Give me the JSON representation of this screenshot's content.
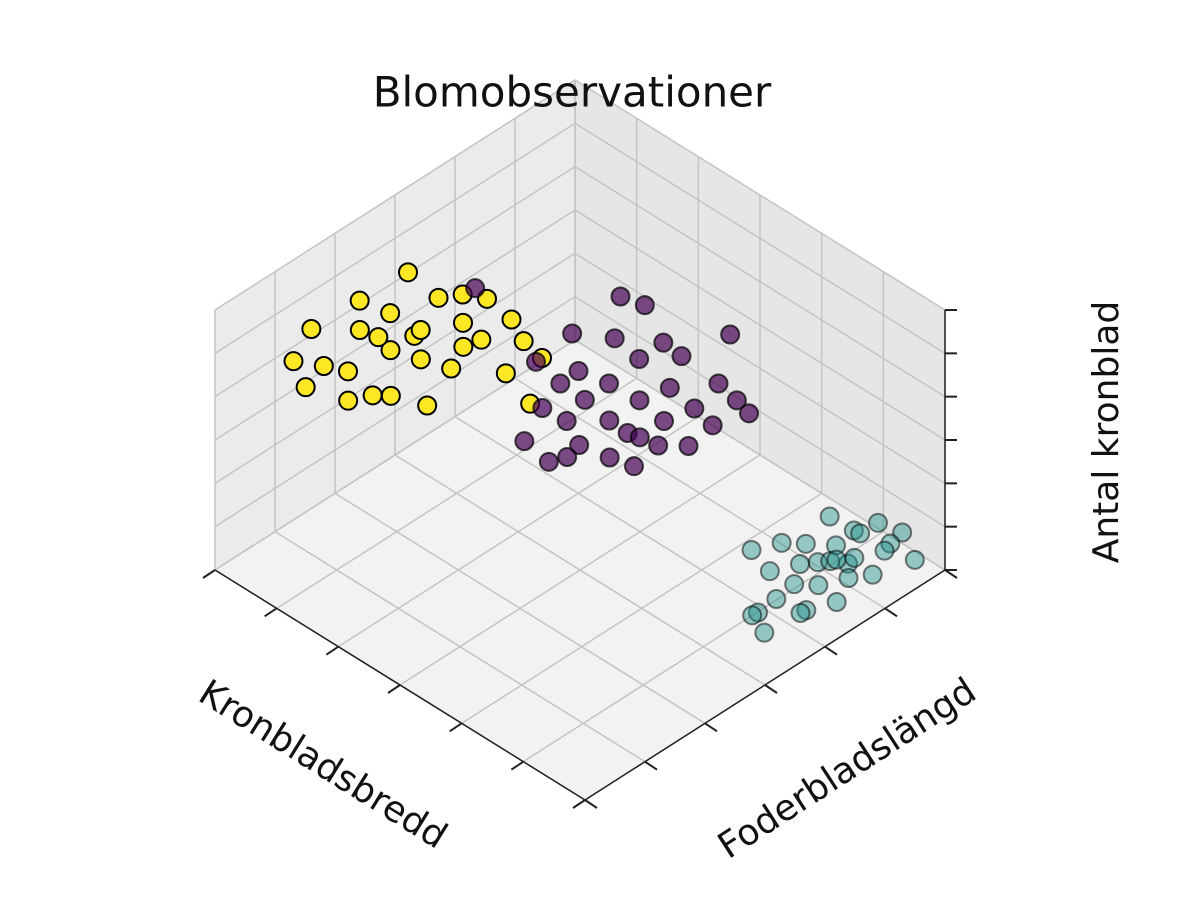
{
  "chart_data": {
    "type": "scatter3d",
    "title": "Blomobservationer",
    "x_label": "Kronbladsbredd",
    "y_label": "Foderbladslängd",
    "z_label": "Antal kronblad",
    "xlim": [
      0,
      6
    ],
    "ylim": [
      0,
      6
    ],
    "zlim": [
      0,
      6
    ],
    "xticks": [
      0,
      1,
      2,
      3,
      4,
      5,
      6
    ],
    "yticks": [
      0,
      1,
      2,
      3,
      4,
      5,
      6
    ],
    "zticks": [
      0,
      1,
      2,
      3,
      4,
      5,
      6
    ],
    "grid": true,
    "series": [
      {
        "color": "#fde725",
        "alpha": 1,
        "x": [
          0.3,
          0.2,
          0.5,
          0.6,
          0.4,
          0.8,
          0.7,
          0.9,
          1.0,
          0.6,
          1.1,
          0.9,
          1.2,
          0.8,
          1.3,
          1.0,
          1.4,
          1.2,
          1.5,
          1.1,
          1.6,
          0.5,
          1.3,
          1.7,
          1.8,
          0.7,
          1.9,
          1.0,
          0.4,
          1.4
        ],
        "y": [
          1.0,
          1.4,
          1.3,
          1.6,
          1.1,
          1.9,
          2.2,
          2.0,
          2.4,
          2.6,
          2.3,
          2.8,
          2.9,
          2.5,
          2.6,
          3.1,
          3.0,
          3.3,
          3.4,
          1.8,
          3.5,
          1.9,
          2.2,
          3.1,
          3.6,
          1.5,
          3.3,
          1.6,
          2.0,
          2.7
        ],
        "z": [
          4.2,
          4.5,
          4.0,
          3.7,
          3.6,
          4.4,
          4.6,
          4.1,
          4.3,
          5.1,
          3.8,
          4.6,
          4.2,
          3.9,
          3.5,
          4.5,
          3.9,
          4.4,
          4.1,
          3.4,
          3.6,
          4.3,
          3.0,
          3.3,
          3.3,
          3.2,
          2.6,
          3.5,
          4.8,
          4.0
        ]
      },
      {
        "color": "#440154",
        "alpha": 0.7,
        "x": [
          2.0,
          2.2,
          2.5,
          2.3,
          2.6,
          2.8,
          2.1,
          2.4,
          2.7,
          3.0,
          2.9,
          3.2,
          3.4,
          3.1,
          2.5,
          2.2,
          1.9,
          1.8,
          2.6,
          3.3,
          3.5,
          3.6,
          2.0,
          2.3,
          2.8,
          3.0,
          2.1,
          1.3,
          2.3,
          3.1,
          2.7,
          2.9,
          2.5,
          3.3,
          2.0
        ],
        "y": [
          3.4,
          3.6,
          3.5,
          3.8,
          3.9,
          4.0,
          3.9,
          4.1,
          4.3,
          4.4,
          4.6,
          4.7,
          4.8,
          4.2,
          4.5,
          4.4,
          4.0,
          3.5,
          4.8,
          5.0,
          5.1,
          5.2,
          3.1,
          3.2,
          3.7,
          3.9,
          4.6,
          3.0,
          4.8,
          5.4,
          5.0,
          4.1,
          3.3,
          4.5,
          3.7
        ],
        "z": [
          2.5,
          2.2,
          2.0,
          2.6,
          2.3,
          2.1,
          3.0,
          2.8,
          2.5,
          2.2,
          2.7,
          2.4,
          2.1,
          1.9,
          3.1,
          3.4,
          3.6,
          3.3,
          3.3,
          2.8,
          2.5,
          2.2,
          2.0,
          1.7,
          1.8,
          1.6,
          4.1,
          5.0,
          3.9,
          3.4,
          2.9,
          2.0,
          1.9,
          1.8,
          2.8
        ]
      },
      {
        "color": "#21918c",
        "alpha": 0.45,
        "x": [
          5.5,
          5.4,
          5.6,
          5.3,
          5.7,
          5.5,
          5.4,
          5.6,
          5.8,
          5.3,
          5.5,
          5.7,
          5.4,
          5.6,
          5.2,
          5.8,
          5.5,
          5.3,
          5.7,
          5.6,
          5.4,
          5.9,
          5.2,
          5.1,
          5.6,
          5.5,
          5.3,
          5.7,
          5.6,
          5.4
        ],
        "y": [
          3.3,
          3.5,
          3.6,
          3.8,
          3.9,
          4.0,
          4.2,
          4.3,
          4.4,
          4.4,
          4.6,
          4.7,
          4.8,
          4.9,
          4.9,
          5.0,
          5.1,
          5.2,
          5.3,
          5.5,
          5.5,
          5.6,
          4.1,
          3.7,
          4.1,
          5.8,
          4.6,
          4.5,
          3.4,
          5.0
        ],
        "z": [
          0.9,
          0.7,
          1.1,
          1.3,
          0.6,
          1.0,
          1.2,
          0.8,
          0.5,
          1.4,
          1.0,
          0.7,
          1.1,
          0.9,
          1.5,
          0.6,
          1.2,
          1.0,
          0.8,
          0.7,
          1.0,
          0.5,
          1.6,
          1.7,
          0.4,
          0.6,
          0.8,
          1.3,
          0.5,
          0.5
        ]
      }
    ]
  }
}
